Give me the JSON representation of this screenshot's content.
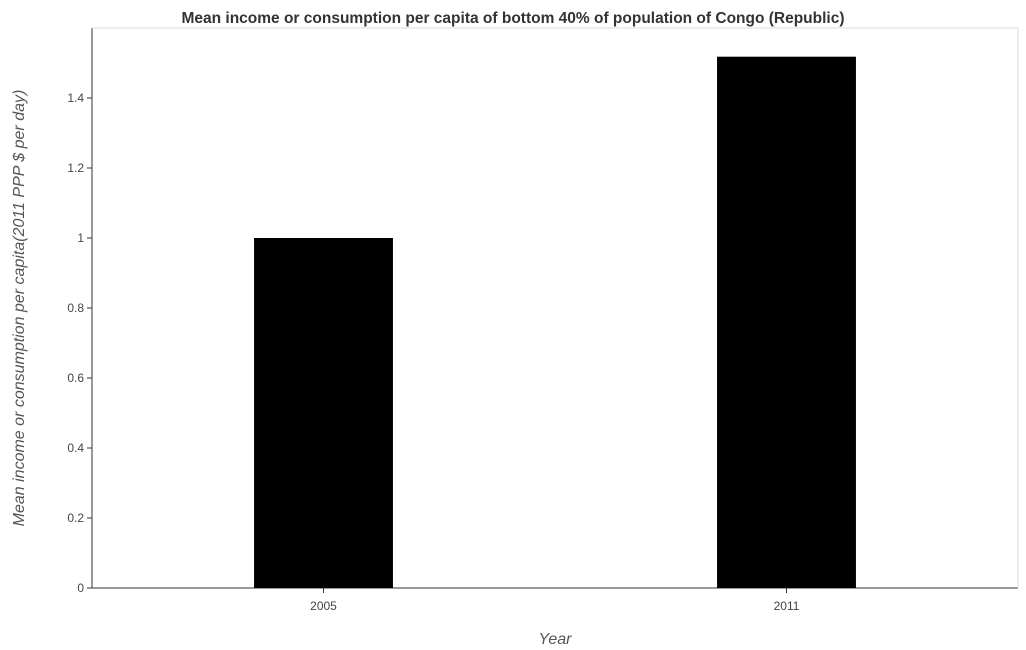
{
  "chart_data": {
    "type": "bar",
    "title": "Mean income or consumption per capita of bottom 40% of population of Congo (Republic)",
    "xlabel": "Year",
    "ylabel": "Mean income or consumption per capita(2011 PPP $ per day)",
    "categories": [
      "2005",
      "2011"
    ],
    "values": [
      1.0,
      1.518
    ],
    "ylim": [
      0,
      1.6
    ],
    "yticks": [
      "0",
      "0.2",
      "0.4",
      "0.6",
      "0.8",
      "1",
      "1.2",
      "1.4"
    ],
    "ytick_values": [
      0,
      0.2,
      0.4,
      0.6,
      0.8,
      1.0,
      1.2,
      1.4
    ],
    "bar_color": "#000000",
    "grid": false,
    "legend": "none"
  }
}
